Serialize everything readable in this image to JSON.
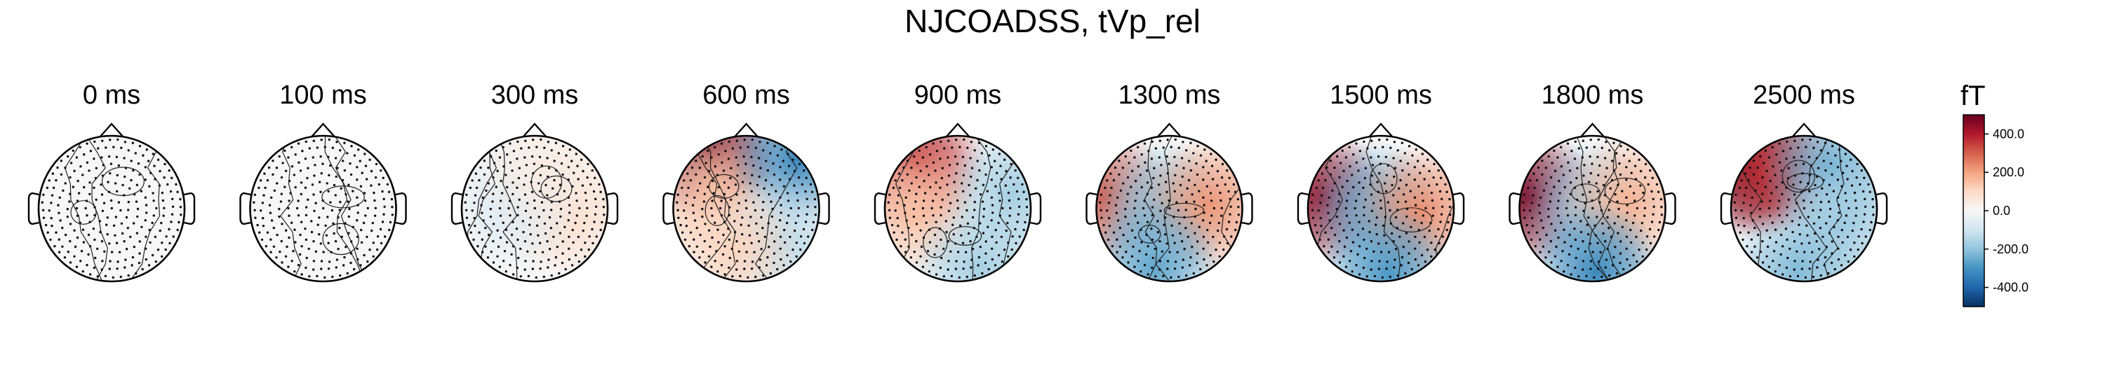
{
  "chart_data": {
    "type": "heatmap",
    "title": "NJCOADSS, tVp_rel",
    "panels": [
      {
        "label": "0 ms",
        "time_ms": 0,
        "blobs": []
      },
      {
        "label": "100 ms",
        "time_ms": 100,
        "blobs": []
      },
      {
        "label": "300 ms",
        "time_ms": 300,
        "blobs": [
          {
            "u": 0.45,
            "v": -0.05,
            "value": 90
          },
          {
            "u": -0.35,
            "v": 0.05,
            "value": -70
          },
          {
            "u": 0.1,
            "v": 0.55,
            "value": 40
          }
        ]
      },
      {
        "label": "600 ms",
        "time_ms": 600,
        "blobs": [
          {
            "u": -0.5,
            "v": 0.78,
            "value": 600
          },
          {
            "u": -0.45,
            "v": 0.25,
            "value": 150
          },
          {
            "u": 0.72,
            "v": 0.7,
            "value": -330
          },
          {
            "u": 0.45,
            "v": -0.45,
            "value": -140
          },
          {
            "u": -0.2,
            "v": -0.55,
            "value": 110
          }
        ]
      },
      {
        "label": "900 ms",
        "time_ms": 900,
        "blobs": [
          {
            "u": -0.55,
            "v": 0.62,
            "value": 360
          },
          {
            "u": -0.6,
            "v": 0.0,
            "value": 150
          },
          {
            "u": 0.75,
            "v": 0.2,
            "value": -170
          },
          {
            "u": 0.3,
            "v": -0.8,
            "value": -170
          }
        ]
      },
      {
        "label": "1300 ms",
        "time_ms": 1300,
        "blobs": [
          {
            "u": -0.88,
            "v": 0.15,
            "value": 310
          },
          {
            "u": -0.1,
            "v": 0.0,
            "value": -210
          },
          {
            "u": 0.55,
            "v": 0.05,
            "value": 220
          },
          {
            "u": -0.2,
            "v": -0.82,
            "value": -260
          }
        ]
      },
      {
        "label": "1500 ms",
        "time_ms": 1500,
        "blobs": [
          {
            "u": -0.82,
            "v": 0.15,
            "value": 430
          },
          {
            "u": -0.1,
            "v": 0.0,
            "value": -250
          },
          {
            "u": 0.55,
            "v": -0.05,
            "value": 230
          },
          {
            "u": 0.1,
            "v": -0.9,
            "value": -290
          }
        ]
      },
      {
        "label": "1800 ms",
        "time_ms": 1800,
        "blobs": [
          {
            "u": -0.85,
            "v": 0.15,
            "value": 470
          },
          {
            "u": -0.05,
            "v": 0.0,
            "value": -190
          },
          {
            "u": 0.5,
            "v": 0.1,
            "value": 170
          },
          {
            "u": 0.05,
            "v": -0.88,
            "value": -320
          }
        ]
      },
      {
        "label": "2500 ms",
        "time_ms": 2500,
        "blobs": [
          {
            "u": -0.72,
            "v": 0.52,
            "value": 640
          },
          {
            "u": -0.45,
            "v": 0.55,
            "value": 360
          },
          {
            "u": 0.35,
            "v": 0.55,
            "value": -240
          },
          {
            "u": 0.55,
            "v": -0.2,
            "value": -180
          },
          {
            "u": -0.1,
            "v": -0.85,
            "value": -220
          }
        ]
      }
    ],
    "colorbar": {
      "unit": "fT",
      "colormap": "RdBu_r",
      "range": [
        -500,
        500
      ],
      "ticks": [
        400.0,
        200.0,
        0.0,
        -200.0,
        -400.0
      ],
      "tick_labels": [
        "400.0",
        "200.0",
        "0.0",
        "-200.0",
        "-400.0"
      ]
    }
  }
}
